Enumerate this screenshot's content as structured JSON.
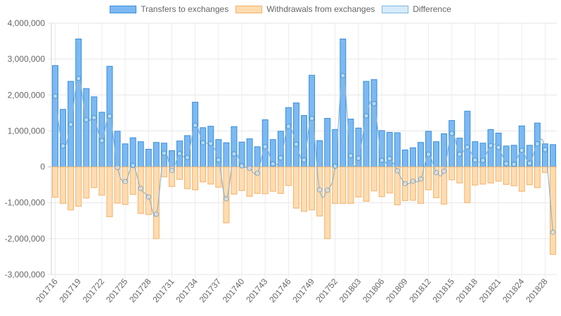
{
  "legend": {
    "items": [
      {
        "label": "Transfers to exchanges",
        "fill": "#7cb9f2",
        "stroke": "#3a8fdc"
      },
      {
        "label": "Withdrawals from exchanges",
        "fill": "#ffdcb0",
        "stroke": "#f2b16a"
      },
      {
        "label": "Difference",
        "fill": "#d6ecfb",
        "stroke": "#7fb6e0"
      }
    ]
  },
  "chart_data": {
    "type": "bar",
    "ylim": [
      -3000000,
      4000000
    ],
    "ytick_step": 1000000,
    "grid": true,
    "legend_position": "top-center",
    "x_tick_labels": [
      "201716",
      "201719",
      "201722",
      "201725",
      "201728",
      "201731",
      "201734",
      "201737",
      "201740",
      "201743",
      "201746",
      "201749",
      "201752",
      "201803",
      "201806",
      "201809",
      "201812",
      "201815",
      "201818",
      "201821",
      "201824",
      "201828"
    ],
    "x_tick_positions": [
      0,
      3,
      6,
      9,
      12,
      15,
      18,
      21,
      24,
      27,
      30,
      33,
      36,
      39,
      42,
      45,
      48,
      51,
      54,
      57,
      60,
      63
    ],
    "colors": {
      "transfers": "#7cb9f2",
      "transfers_stroke": "#3a8fdc",
      "withdrawals": "#ffdcb0",
      "withdrawals_stroke": "#f2b16a",
      "difference_line": "#8eb5d0",
      "diff_point_pos": "#4a9ad6",
      "diff_point_neg": "#9aa5ae"
    },
    "series": [
      {
        "name": "Transfers to exchanges",
        "values": [
          2820000,
          1600000,
          2380000,
          3560000,
          2180000,
          1950000,
          1520000,
          2800000,
          990000,
          640000,
          810000,
          700000,
          490000,
          680000,
          660000,
          450000,
          720000,
          870000,
          1800000,
          1090000,
          1130000,
          760000,
          670000,
          1120000,
          690000,
          780000,
          560000,
          1310000,
          760000,
          990000,
          1650000,
          1780000,
          1430000,
          2550000,
          730000,
          1350000,
          1040000,
          3560000,
          1330000,
          1080000,
          2380000,
          2430000,
          1010000,
          960000,
          950000,
          470000,
          530000,
          680000,
          990000,
          700000,
          920000,
          1290000,
          800000,
          1550000,
          700000,
          660000,
          1040000,
          940000,
          580000,
          600000,
          1140000,
          600000,
          1220000,
          640000,
          620000
        ]
      },
      {
        "name": "Withdrawals from exchanges",
        "values": [
          -850000,
          -1020000,
          -1200000,
          -1100000,
          -870000,
          -580000,
          -790000,
          -1390000,
          -1010000,
          -1050000,
          -770000,
          -1300000,
          -1330000,
          -2000000,
          -280000,
          -550000,
          -350000,
          -610000,
          -640000,
          -420000,
          -480000,
          -570000,
          -1560000,
          -760000,
          -660000,
          -820000,
          -740000,
          -750000,
          -680000,
          -740000,
          -520000,
          -1150000,
          -1240000,
          -1200000,
          -1370000,
          -2000000,
          -1020000,
          -1020000,
          -1020000,
          -840000,
          -960000,
          -670000,
          -830000,
          -730000,
          -1060000,
          -940000,
          -930000,
          -1020000,
          -640000,
          -860000,
          -1040000,
          -360000,
          -450000,
          -1000000,
          -510000,
          -480000,
          -450000,
          -400000,
          -490000,
          -530000,
          -680000,
          -500000,
          -580000,
          -160000,
          -2440000
        ]
      },
      {
        "name": "Difference",
        "values": [
          1970000,
          580000,
          1180000,
          2460000,
          1310000,
          1370000,
          730000,
          1410000,
          -20000,
          -410000,
          40000,
          -600000,
          -840000,
          -1320000,
          380000,
          -100000,
          370000,
          260000,
          1160000,
          670000,
          650000,
          190000,
          -890000,
          360000,
          30000,
          -40000,
          -180000,
          560000,
          80000,
          250000,
          1130000,
          630000,
          190000,
          1350000,
          -640000,
          -650000,
          20000,
          2540000,
          310000,
          240000,
          1420000,
          1760000,
          180000,
          230000,
          -110000,
          -470000,
          -400000,
          -340000,
          350000,
          -160000,
          -120000,
          930000,
          350000,
          550000,
          190000,
          180000,
          590000,
          540000,
          90000,
          70000,
          460000,
          100000,
          640000,
          480000,
          -1820000
        ]
      }
    ]
  }
}
